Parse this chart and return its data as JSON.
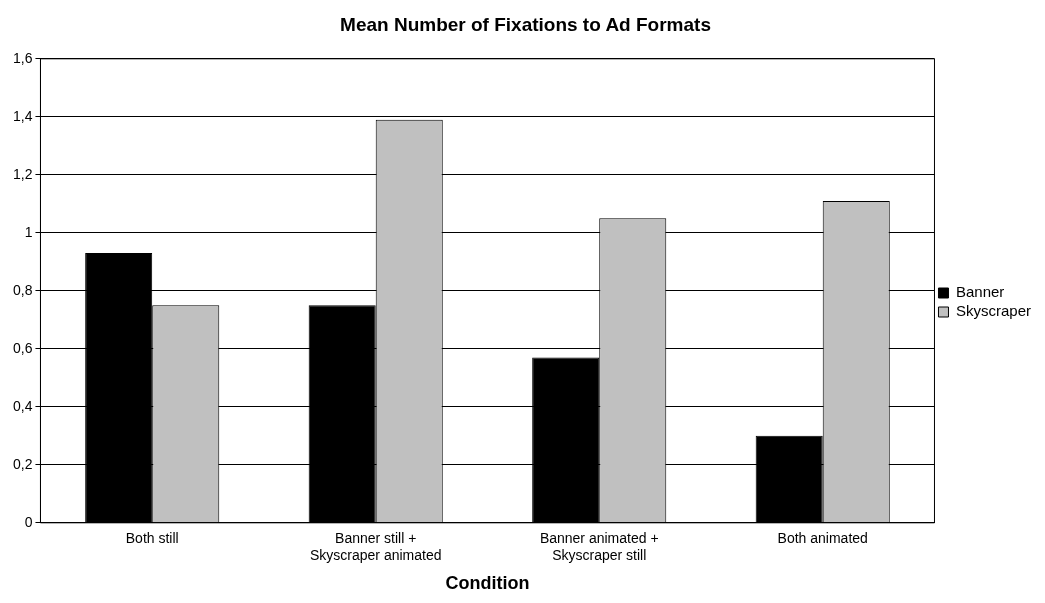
{
  "chart_data": {
    "type": "bar",
    "title": "Mean Number of Fixations to Ad Formats",
    "xlabel": "Condition",
    "categories": [
      "Both still",
      "Banner still + Skyscraper animated",
      "Banner animated + Skyscraper still",
      "Both animated"
    ],
    "series": [
      {
        "name": "Banner",
        "color": "#000000",
        "values": [
          0.93,
          0.75,
          0.57,
          0.3
        ]
      },
      {
        "name": "Skyscraper",
        "color": "#c0c0c0",
        "values": [
          0.75,
          1.39,
          1.05,
          1.11
        ]
      }
    ],
    "ylim": [
      0,
      1.6
    ],
    "yticks": [
      {
        "value": 0,
        "label": "0"
      },
      {
        "value": 0.2,
        "label": "0,2"
      },
      {
        "value": 0.4,
        "label": "0,4"
      },
      {
        "value": 0.6,
        "label": "0,6"
      },
      {
        "value": 0.8,
        "label": "0,8"
      },
      {
        "value": 1,
        "label": "1"
      },
      {
        "value": 1.2,
        "label": "1,2"
      },
      {
        "value": 1.4,
        "label": "1,4"
      },
      {
        "value": 1.6,
        "label": "1,6"
      }
    ],
    "grid": "y",
    "legend": "right"
  }
}
